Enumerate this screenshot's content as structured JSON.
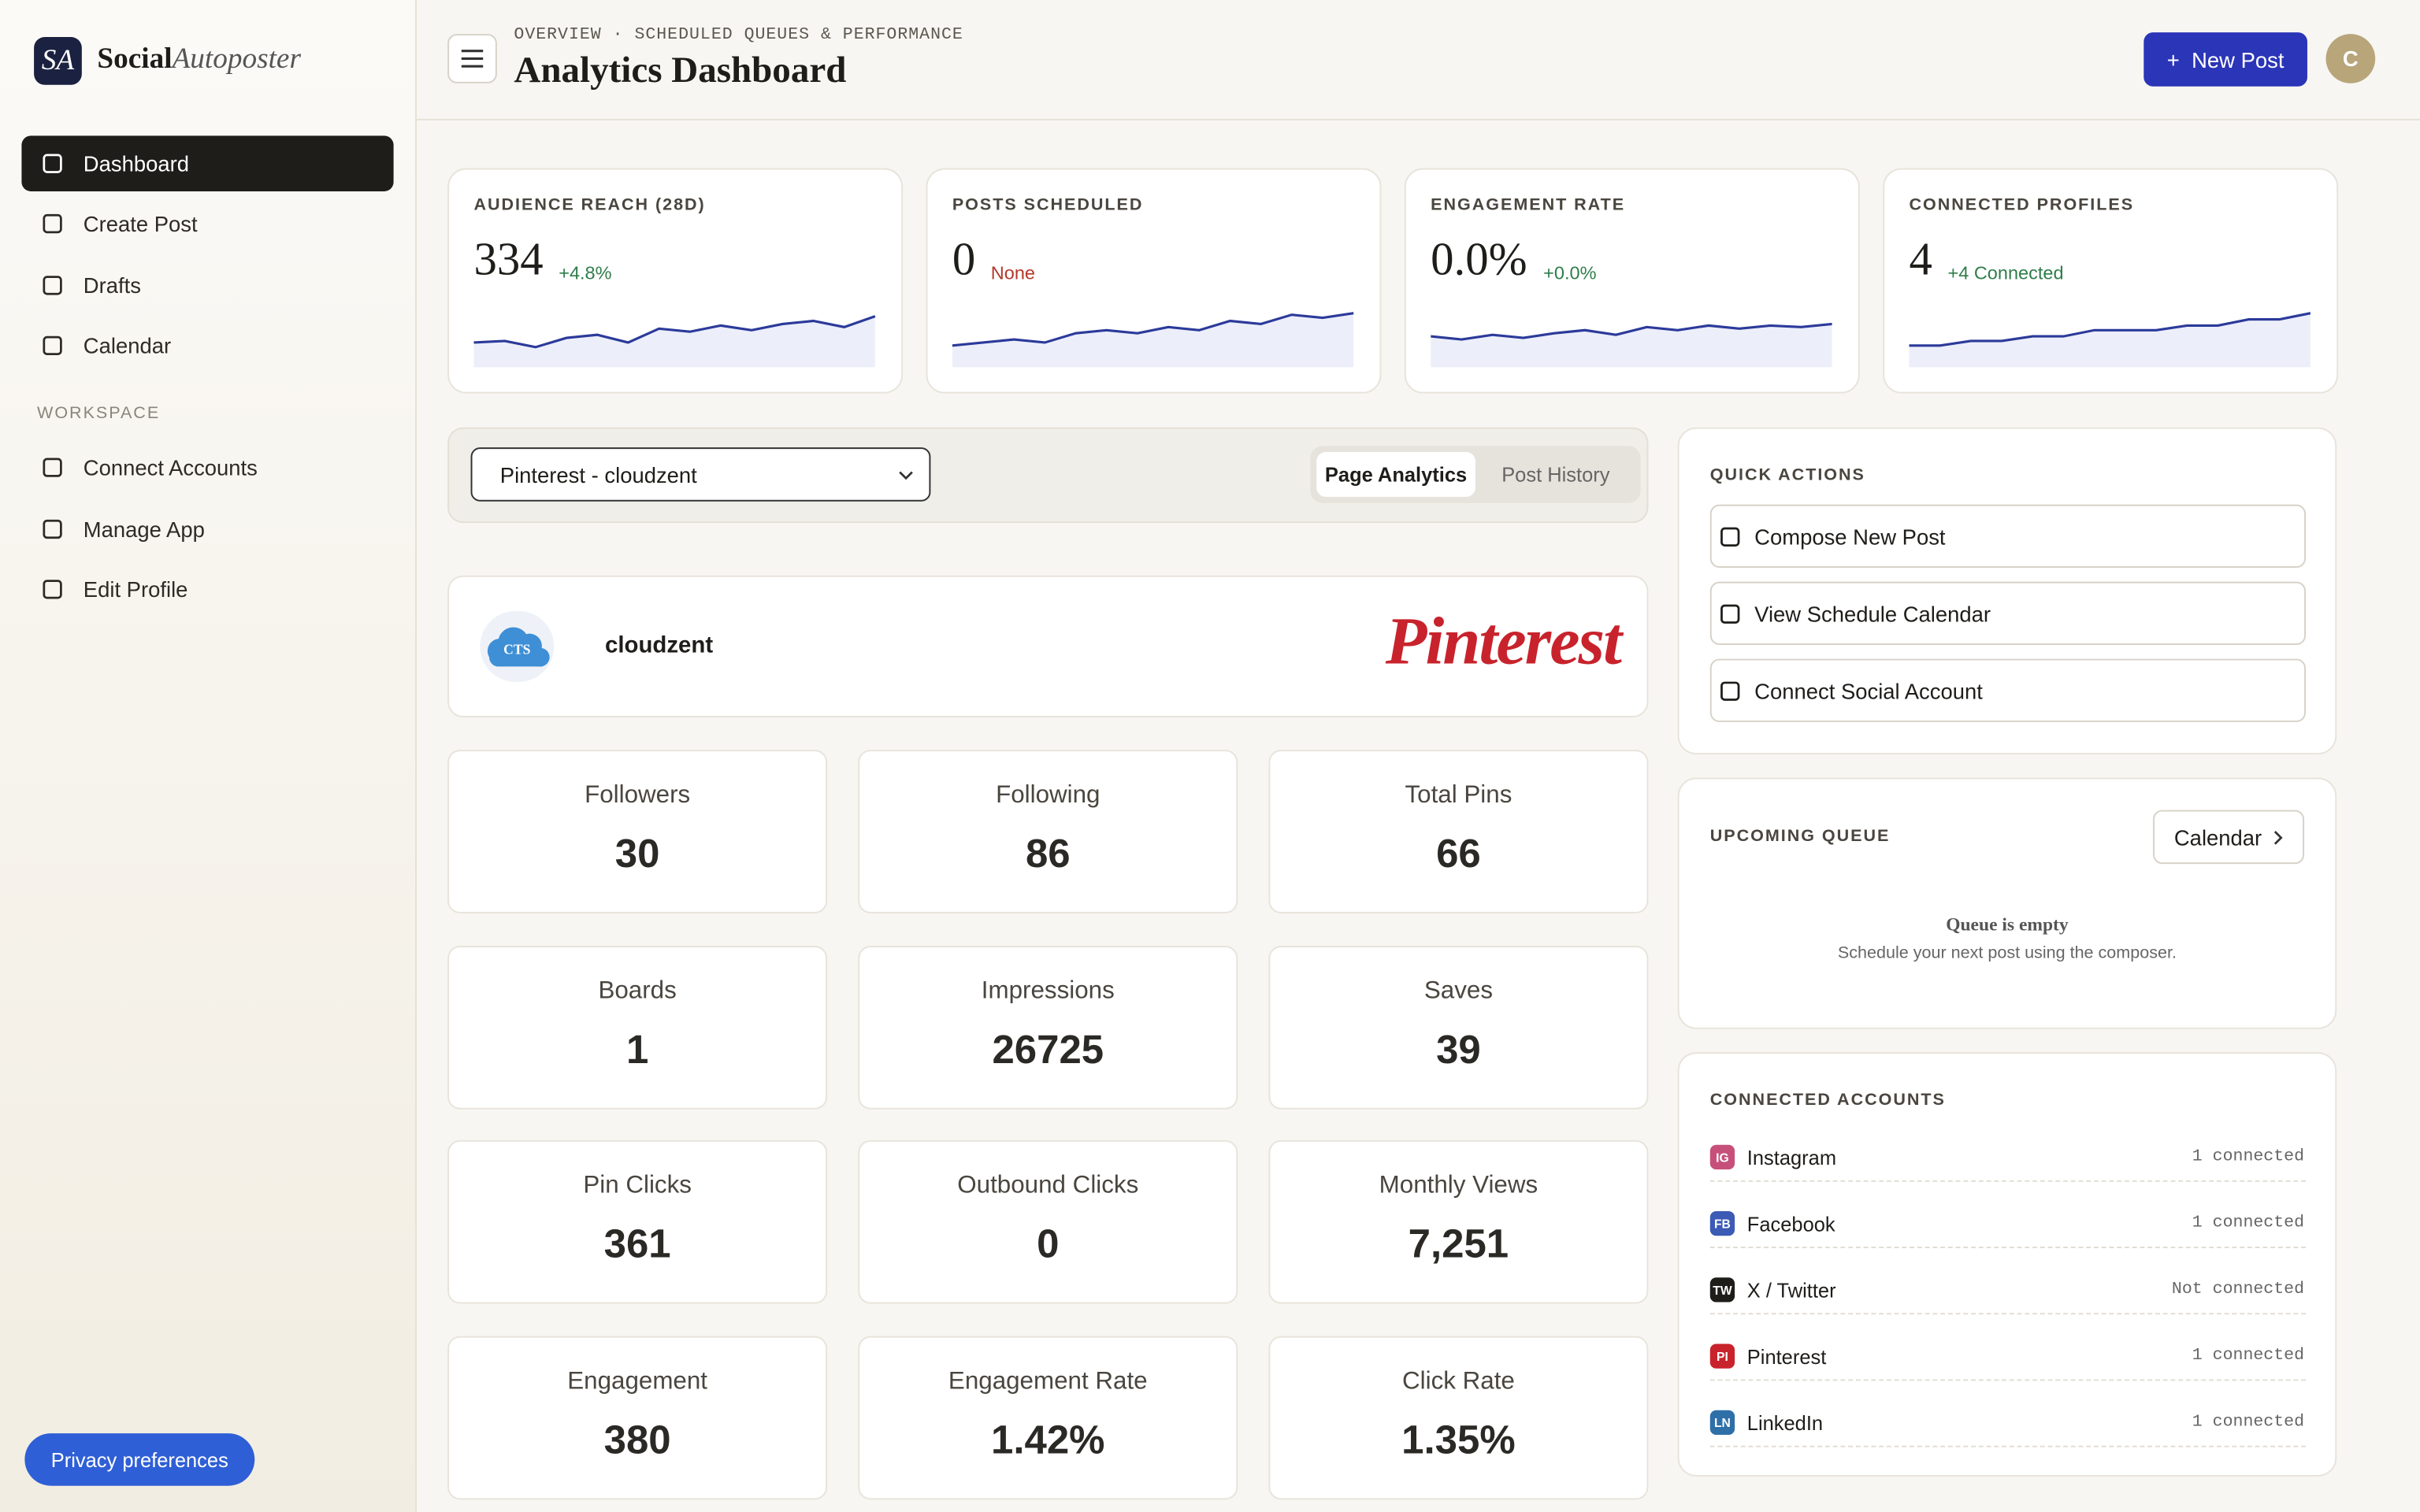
{
  "brand": {
    "logo": "SA",
    "name": "Social",
    "name_italic": "Autoposter"
  },
  "nav": {
    "main": [
      "Dashboard",
      "Create Post",
      "Drafts",
      "Calendar"
    ],
    "section": "WORKSPACE",
    "workspace": [
      "Connect Accounts",
      "Manage App",
      "Edit Profile"
    ]
  },
  "header": {
    "eyebrow": "OVERVIEW · SCHEDULED QUEUES & PERFORMANCE",
    "title": "Analytics Dashboard",
    "button": "New Post",
    "avatar": "C"
  },
  "kpis": [
    {
      "label": "AUDIENCE REACH (28D)",
      "value": "334",
      "delta": "+4.8%"
    },
    {
      "label": "POSTS SCHEDULED",
      "value": "0",
      "delta": "None"
    },
    {
      "label": "ENGAGEMENT RATE",
      "value": "0.0%",
      "delta": "+0.0%"
    },
    {
      "label": "CONNECTED PROFILES",
      "value": "4",
      "delta": "+4 Connected"
    }
  ],
  "filter": {
    "select": "Pinterest - cloudzent",
    "tabs": [
      "Page Analytics",
      "Post History"
    ]
  },
  "profile": {
    "avatar": "CTS",
    "name": "cloudzent",
    "platform": "Pinterest"
  },
  "metrics": [
    {
      "label": "Followers",
      "value": "30"
    },
    {
      "label": "Following",
      "value": "86"
    },
    {
      "label": "Total Pins",
      "value": "66"
    },
    {
      "label": "Boards",
      "value": "1"
    },
    {
      "label": "Impressions",
      "value": "26725"
    },
    {
      "label": "Saves",
      "value": "39"
    },
    {
      "label": "Pin Clicks",
      "value": "361"
    },
    {
      "label": "Outbound Clicks",
      "value": "0"
    },
    {
      "label": "Monthly Views",
      "value": "7,251"
    },
    {
      "label": "Engagement",
      "value": "380"
    },
    {
      "label": "Engagement Rate",
      "value": "1.42%"
    },
    {
      "label": "Click Rate",
      "value": "1.35%"
    }
  ],
  "quick_actions": {
    "title": "QUICK ACTIONS",
    "items": [
      "Compose New Post",
      "View Schedule Calendar",
      "Connect Social Account"
    ]
  },
  "queue": {
    "title": "UPCOMING QUEUE",
    "button": "Calendar",
    "empty_title": "Queue is empty",
    "empty_text": "Schedule your next post using the composer."
  },
  "accounts": {
    "title": "CONNECTED ACCOUNTS",
    "items": [
      {
        "badge": "IG",
        "name": "Instagram",
        "status": "1 connected"
      },
      {
        "badge": "FB",
        "name": "Facebook",
        "status": "1 connected"
      },
      {
        "badge": "TW",
        "name": "X / Twitter",
        "status": "Not connected"
      },
      {
        "badge": "PI",
        "name": "Pinterest",
        "status": "1 connected"
      },
      {
        "badge": "LN",
        "name": "LinkedIn",
        "status": "1 connected"
      }
    ]
  },
  "privacy": "Privacy preferences"
}
